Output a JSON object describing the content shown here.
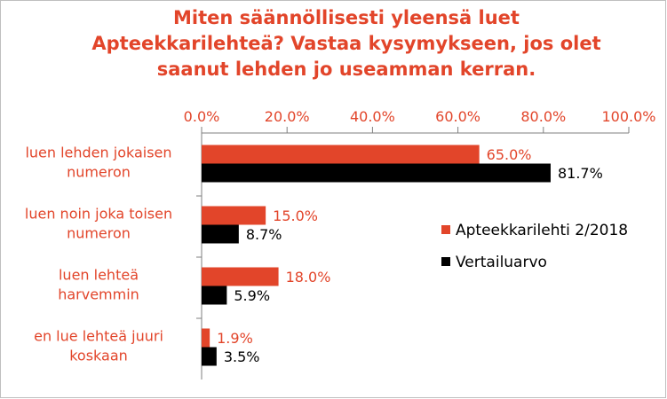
{
  "colors": {
    "accent": "#e2452a",
    "series1": "#e2452a",
    "series2": "#000000",
    "axis": "#7f7f7f"
  },
  "chart_data": {
    "type": "bar",
    "orientation": "horizontal",
    "title_lines": [
      "Miten säännöllisesti yleensä luet",
      "Apteekkarilehteä? Vastaa kysymykseen, jos olet",
      "saanut lehden jo useamman kerran."
    ],
    "categories": [
      [
        "luen lehden jokaisen",
        "numeron"
      ],
      [
        "luen noin joka toisen",
        "numeron"
      ],
      [
        "luen lehteä",
        "harvemmin"
      ],
      [
        "en lue lehteä juuri",
        "koskaan"
      ]
    ],
    "series": [
      {
        "name": "Apteekkarilehti 2/2018",
        "values": [
          65.0,
          15.0,
          18.0,
          1.9
        ],
        "labels": [
          "65.0%",
          "15.0%",
          "18.0%",
          "1.9%"
        ]
      },
      {
        "name": "Vertailuarvo",
        "values": [
          81.7,
          8.7,
          5.9,
          3.5
        ],
        "labels": [
          "81.7%",
          "8.7%",
          "5.9%",
          "3.5%"
        ]
      }
    ],
    "xlim": [
      0,
      100
    ],
    "ticks": [
      "0.0%",
      "20.0%",
      "40.0%",
      "60.0%",
      "80.0%",
      "100.0%"
    ],
    "legend_position": "right"
  }
}
